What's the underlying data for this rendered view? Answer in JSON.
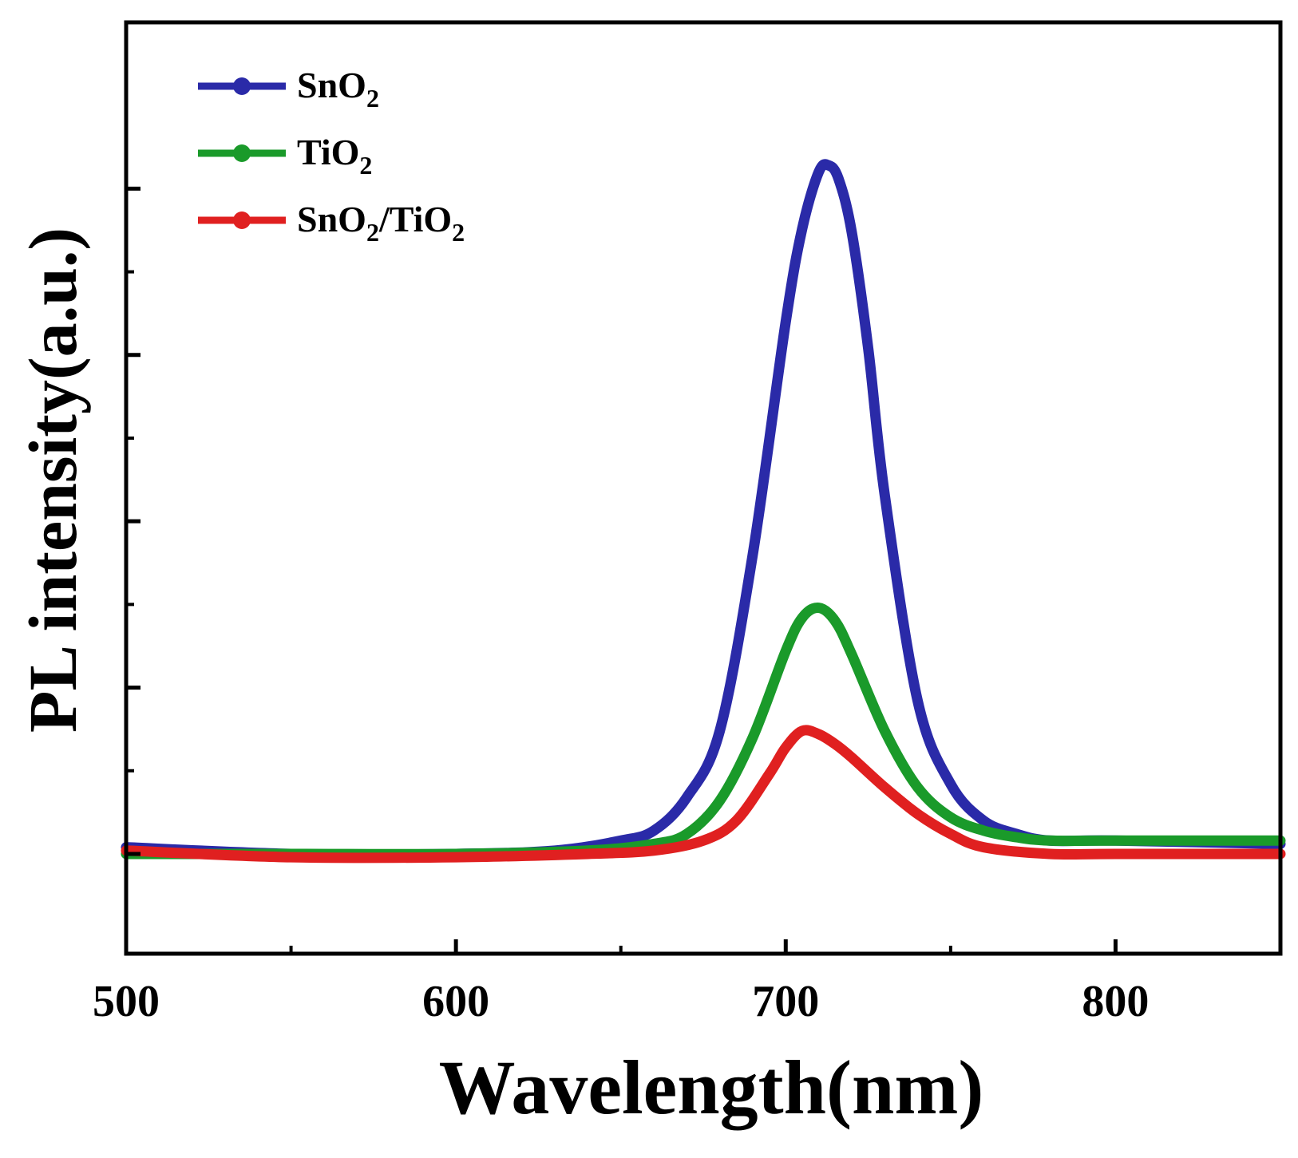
{
  "chart_data": {
    "type": "line",
    "title": "",
    "xlabel": "Wavelength(nm)",
    "ylabel": "PL intensity(a.u.)",
    "xlim": [
      500,
      850
    ],
    "ylim": [
      -0.3,
      2.5
    ],
    "x_ticks": [
      500,
      600,
      700,
      800
    ],
    "x_tick_labels": [
      "500",
      "600",
      "700",
      "800"
    ],
    "x_minor_ticks": [
      550,
      650,
      750
    ],
    "y_ticks": [
      0,
      0.5,
      1.0,
      1.5,
      2.0
    ],
    "y_tick_labels_shown": false,
    "legend_position": "top-left",
    "grid": false,
    "series": [
      {
        "name": "SnO2",
        "label_base": "SnO",
        "label_sub": "2",
        "color": "#2a2aa8",
        "x": [
          500,
          550,
          600,
          630,
          650,
          660,
          670,
          680,
          690,
          700,
          705,
          710,
          713,
          716,
          720,
          725,
          730,
          740,
          750,
          760,
          770,
          780,
          800,
          850
        ],
        "y": [
          0.02,
          0.0,
          0.0,
          0.01,
          0.04,
          0.07,
          0.17,
          0.37,
          0.9,
          1.6,
          1.88,
          2.05,
          2.07,
          2.03,
          1.87,
          1.52,
          1.08,
          0.46,
          0.21,
          0.1,
          0.06,
          0.04,
          0.04,
          0.03
        ]
      },
      {
        "name": "TiO2",
        "label_base": "TiO",
        "label_sub": "2",
        "color": "#1a9a2a",
        "x": [
          500,
          550,
          600,
          640,
          660,
          670,
          680,
          690,
          700,
          705,
          710,
          715,
          720,
          730,
          740,
          750,
          760,
          770,
          780,
          800,
          850
        ],
        "y": [
          0.0,
          0.0,
          0.0,
          0.01,
          0.03,
          0.06,
          0.16,
          0.35,
          0.61,
          0.71,
          0.74,
          0.7,
          0.6,
          0.37,
          0.2,
          0.11,
          0.07,
          0.05,
          0.04,
          0.04,
          0.04
        ]
      },
      {
        "name": "SnO2/TiO2",
        "label_base": "SnO",
        "label_sub": "2",
        "label_base2": "/TiO",
        "label_sub2": "2",
        "color": "#e02020",
        "x": [
          500,
          550,
          600,
          640,
          660,
          675,
          685,
          695,
          700,
          705,
          710,
          715,
          720,
          730,
          740,
          750,
          760,
          780,
          800,
          850
        ],
        "y": [
          0.01,
          -0.01,
          -0.01,
          0.0,
          0.01,
          0.04,
          0.1,
          0.24,
          0.32,
          0.37,
          0.36,
          0.33,
          0.29,
          0.2,
          0.12,
          0.06,
          0.02,
          0.0,
          0.0,
          0.0
        ]
      }
    ]
  }
}
